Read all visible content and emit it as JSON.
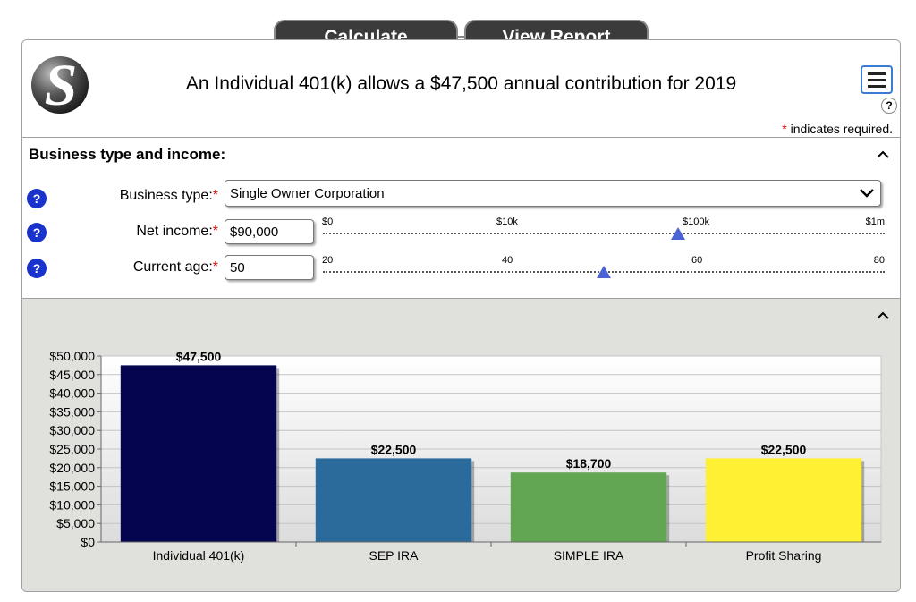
{
  "tabs": {
    "calculate": "Calculate",
    "view_report": "View Report"
  },
  "header": {
    "title": "An Individual 401(k) allows a $47,500 annual contribution for 2019",
    "required_star": "*",
    "required_note": "indicates required.",
    "help": "?"
  },
  "business": {
    "title": "Business type and income:",
    "help": "?",
    "business_type": {
      "label": "Business type:",
      "value": "Single Owner Corporation"
    },
    "net_income": {
      "label": "Net income:",
      "value": "$90,000",
      "ticks": [
        "$0",
        "$10k",
        "$100k",
        "$1m"
      ],
      "thumb_fraction": 0.632
    },
    "age": {
      "label": "Current age:",
      "value": "50",
      "ticks": [
        "20",
        "40",
        "60",
        "80"
      ],
      "thumb_fraction": 0.5
    }
  },
  "chart_data": {
    "type": "bar",
    "categories": [
      "Individual 401(k)",
      "SEP IRA",
      "SIMPLE IRA",
      "Profit Sharing"
    ],
    "values": [
      47500,
      22500,
      18700,
      22500
    ],
    "value_labels": [
      "$47,500",
      "$22,500",
      "$18,700",
      "$22,500"
    ],
    "colors": [
      "#05054f",
      "#2a6b9c",
      "#62a552",
      "#fef033"
    ],
    "ylim": [
      0,
      50000
    ],
    "yticks": [
      "$0",
      "$5,000",
      "$10,000",
      "$15,000",
      "$20,000",
      "$25,000",
      "$30,000",
      "$35,000",
      "$40,000",
      "$45,000",
      "$50,000"
    ],
    "grid": true
  }
}
